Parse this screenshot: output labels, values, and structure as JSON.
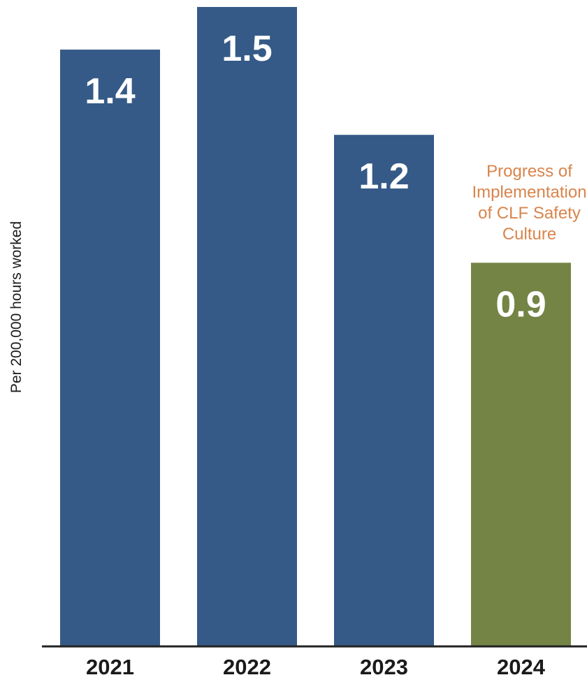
{
  "chart_data": {
    "type": "bar",
    "categories": [
      "2021",
      "2022",
      "2023",
      "2024"
    ],
    "values": [
      1.4,
      1.5,
      1.2,
      0.9
    ],
    "value_labels": [
      "1.4",
      "1.5",
      "1.2",
      "0.9"
    ],
    "bar_colors": [
      "#355a87",
      "#355a87",
      "#355a87",
      "#738445"
    ],
    "title": "",
    "xlabel": "",
    "ylabel": "Per 200,000 hours worked",
    "ylim": [
      0,
      1.5
    ],
    "grid": false,
    "legend": "none",
    "annotation": {
      "category": "2024",
      "lines": [
        "Progress of",
        "Implementation",
        "of CLF Safety",
        "Culture"
      ],
      "color": "#d9844b"
    }
  }
}
